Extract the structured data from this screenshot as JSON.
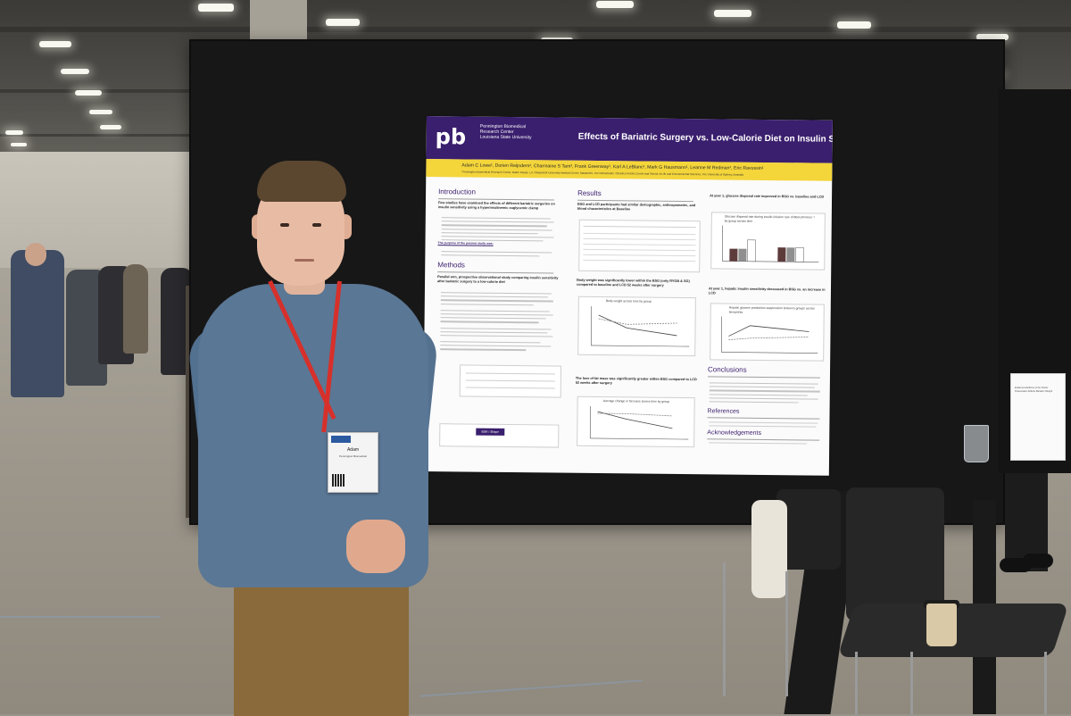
{
  "poster": {
    "org_logo": "pb",
    "org_lines": [
      "Pennington Biomedical",
      "Research Center",
      "Louisiana State University"
    ],
    "title": "Effects of Bariatric Surgery vs. Low-Calorie Diet on Insulin Sensitivity",
    "authors": "Adam C Lowe¹, Dorien Reijnders², Charmaine S Tam³, Frank Greenway¹, Karl A LeBlanc¹, Mark G Hausmann¹, Leanne M Redman¹, Eric Ravussin¹",
    "affiliations": "¹Pennington Biomedical Research Center, Baton Rouge, LA; ²Maastricht University Medical Centre, Maastricht, The Netherlands; ³Charles Perkins Centre and School of Life and Environmental Sciences, The University of Sydney, Australia",
    "intro_heading": "Introduction",
    "intro_lead": "Few studies have examined the effects of different bariatric surgeries on insulin sensitivity using a hyperinsulinemic euglycemic clamp",
    "purpose_heading": "The purpose of the present study was:",
    "methods_heading": "Methods",
    "methods_lead": "Parallel arm, prospective observational study comparing insulin sensitivity after bariatric surgery to a low-calorie diet",
    "results_heading": "Results",
    "results_lead": "BSG and LCD participants had similar demographic, anthropometric, and blood characteristics at Baseline",
    "results_bw": "Body weight was significantly lower within the BSG (only RYGB & SG) compared to baseline and LCD 52 weeks after surgery",
    "results_fm": "The loss of fat mass was significantly greater within BSG compared to LCD 52 weeks after surgery",
    "glucose_head": "At year 1, glucose disposal rate improved in BSG vs. baseline and LCD",
    "hepatic_head": "At year 1, hepatic insulin sensitivity decreased in BSG vs. an increase in LCD",
    "fig_bw_title": "Body weight across time by group",
    "fig_fm_title": "Average change in fat mass across time by group",
    "fig_gd_title": "Glucose disposal rate during insulin infusion rate of 80mU/m²/min⁻¹ by group across time",
    "fig_hp_title": "Hepatic glucose production suppression between groups across timepoints",
    "conclusions_heading": "Conclusions",
    "references_heading": "References",
    "ack_heading": "Acknowledgements",
    "legend_bsg": "BSG",
    "legend_lcd": "LCD",
    "study_design_label": "BSR / Shape"
  },
  "badge": {
    "name": "Adam",
    "line": "Pennington Biomedical"
  },
  "sign": {
    "text": "Evidence-Medicine of the Poster Presentation Effects Bariatric Weight"
  },
  "colors": {
    "poster_header": "#3a1f6e",
    "poster_band": "#f4d53a",
    "lanyard": "#d7302b",
    "sweater": "#5a7795",
    "board": "#171717"
  }
}
